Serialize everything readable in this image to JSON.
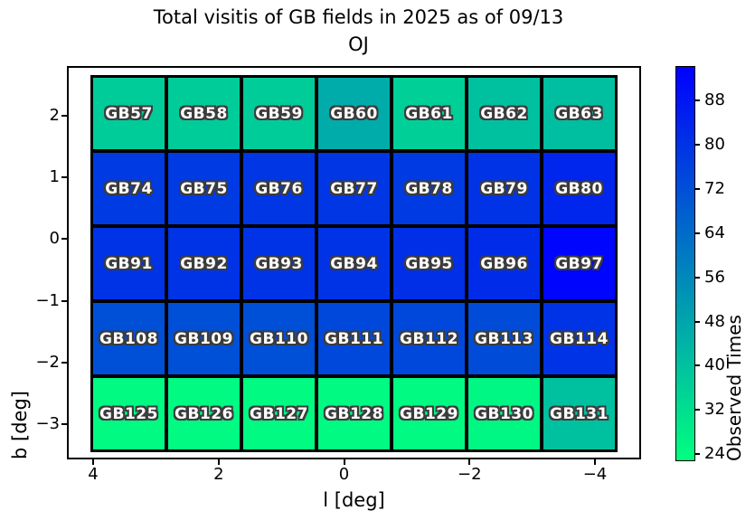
{
  "figure": {
    "title_line1": "Total visitis of GB fields in 2025 as of 09/13",
    "title_line2": "OJ"
  },
  "chart_data": {
    "type": "heatmap",
    "title": "Total visitis of GB fields in 2025 as of 09/13 OJ",
    "xlabel": "l [deg]",
    "ylabel": "b [deg]",
    "x_axis_inverted": true,
    "x_tick_labels": [
      "4",
      "2",
      "0",
      "−2",
      "−4"
    ],
    "y_tick_labels": [
      "2",
      "1",
      "0",
      "−1",
      "−2",
      "−3"
    ],
    "grid_cols_l_centers": [
      3.4,
      2.2,
      1.0,
      -0.2,
      -1.4,
      -2.6,
      -3.8
    ],
    "grid_rows_b_centers": [
      2.0,
      0.8,
      -0.4,
      -1.6,
      -2.8
    ],
    "colormap": {
      "name": "winter_r",
      "low_hex": "#00ff80",
      "high_hex": "#0000ff"
    },
    "colorbar": {
      "label": "Observed Times",
      "ticks": [
        88,
        80,
        72,
        64,
        56,
        48,
        40,
        32,
        24
      ],
      "vmin": 22.7,
      "vmax": 94.3
    },
    "cell_label_color": "#ffffff",
    "rows": [
      {
        "fields": [
          {
            "id": "GB57",
            "value": 37
          },
          {
            "id": "GB58",
            "value": 37
          },
          {
            "id": "GB59",
            "value": 37
          },
          {
            "id": "GB60",
            "value": 46
          },
          {
            "id": "GB61",
            "value": 36
          },
          {
            "id": "GB62",
            "value": 40
          },
          {
            "id": "GB63",
            "value": 41
          }
        ]
      },
      {
        "fields": [
          {
            "id": "GB74",
            "value": 78
          },
          {
            "id": "GB75",
            "value": 78
          },
          {
            "id": "GB76",
            "value": 79
          },
          {
            "id": "GB77",
            "value": 79
          },
          {
            "id": "GB78",
            "value": 78
          },
          {
            "id": "GB79",
            "value": 80
          },
          {
            "id": "GB80",
            "value": 84
          }
        ]
      },
      {
        "fields": [
          {
            "id": "GB91",
            "value": 80
          },
          {
            "id": "GB92",
            "value": 80
          },
          {
            "id": "GB93",
            "value": 80
          },
          {
            "id": "GB94",
            "value": 80
          },
          {
            "id": "GB95",
            "value": 81
          },
          {
            "id": "GB96",
            "value": 82
          },
          {
            "id": "GB97",
            "value": 93
          }
        ]
      },
      {
        "fields": [
          {
            "id": "GB108",
            "value": 72
          },
          {
            "id": "GB109",
            "value": 72
          },
          {
            "id": "GB110",
            "value": 72
          },
          {
            "id": "GB111",
            "value": 74
          },
          {
            "id": "GB112",
            "value": 74
          },
          {
            "id": "GB113",
            "value": 73
          },
          {
            "id": "GB114",
            "value": 80
          }
        ]
      },
      {
        "fields": [
          {
            "id": "GB125",
            "value": 24
          },
          {
            "id": "GB126",
            "value": 24
          },
          {
            "id": "GB127",
            "value": 24
          },
          {
            "id": "GB128",
            "value": 24
          },
          {
            "id": "GB129",
            "value": 24
          },
          {
            "id": "GB130",
            "value": 25
          },
          {
            "id": "GB131",
            "value": 40
          }
        ]
      }
    ]
  }
}
